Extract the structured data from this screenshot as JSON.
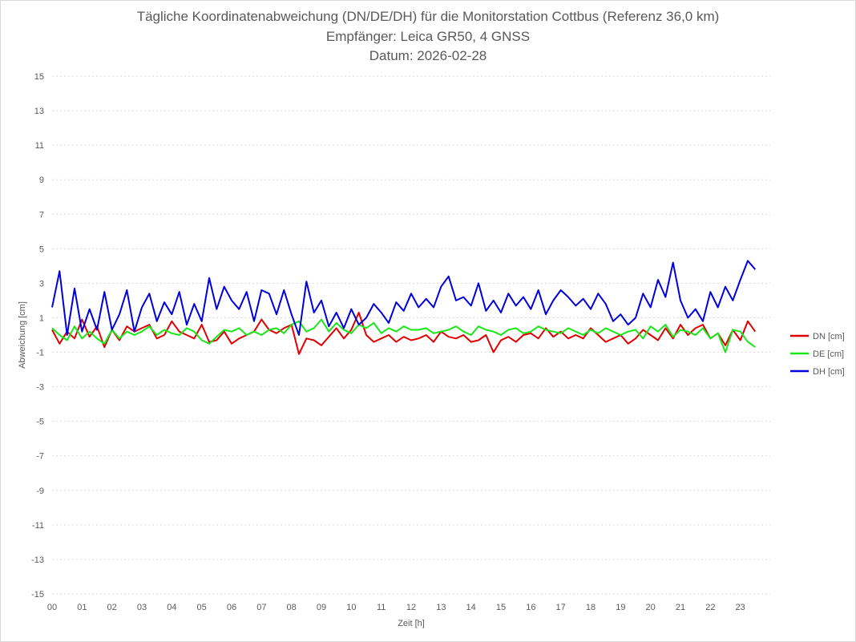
{
  "chart_data": {
    "type": "line",
    "title_lines": [
      "Tägliche Koordinatenabweichung (DN/DE/DH) für die Monitorstation Cottbus (Referenz 36,0 km)",
      "Empfänger: Leica GR50, 4 GNSS",
      "Datum: 2026-02-28"
    ],
    "xlabel": "Zeit [h]",
    "ylabel": "Abweichung [cm]",
    "xlim": [
      0,
      24
    ],
    "ylim": [
      -15,
      15
    ],
    "x_ticks": [
      "00",
      "01",
      "02",
      "03",
      "04",
      "05",
      "06",
      "07",
      "08",
      "09",
      "10",
      "11",
      "12",
      "13",
      "14",
      "15",
      "16",
      "17",
      "18",
      "19",
      "20",
      "21",
      "22",
      "23"
    ],
    "y_ticks": [
      15,
      13,
      11,
      9,
      7,
      5,
      3,
      1,
      -1,
      -3,
      -5,
      -7,
      -9,
      -11,
      -13,
      -15
    ],
    "legend_position": "right",
    "series": [
      {
        "name": "DN [cm]",
        "color": "#e00000",
        "x": [
          0.0,
          0.25,
          0.5,
          0.75,
          1.0,
          1.25,
          1.5,
          1.75,
          2.0,
          2.25,
          2.5,
          2.75,
          3.0,
          3.25,
          3.5,
          3.75,
          4.0,
          4.25,
          4.5,
          4.75,
          5.0,
          5.25,
          5.5,
          5.75,
          6.0,
          6.25,
          6.5,
          6.75,
          7.0,
          7.25,
          7.5,
          7.75,
          8.0,
          8.25,
          8.5,
          8.75,
          9.0,
          9.25,
          9.5,
          9.75,
          10.0,
          10.25,
          10.5,
          10.75,
          11.0,
          11.25,
          11.5,
          11.75,
          12.0,
          12.25,
          12.5,
          12.75,
          13.0,
          13.25,
          13.5,
          13.75,
          14.0,
          14.25,
          14.5,
          14.75,
          15.0,
          15.25,
          15.5,
          15.75,
          16.0,
          16.25,
          16.5,
          16.75,
          17.0,
          17.25,
          17.5,
          17.75,
          18.0,
          18.25,
          18.5,
          18.75,
          19.0,
          19.25,
          19.5,
          19.75,
          20.0,
          20.25,
          20.5,
          20.75,
          21.0,
          21.25,
          21.5,
          21.75,
          22.0,
          22.25,
          22.5,
          22.75,
          23.0,
          23.25,
          23.5
        ],
        "values": [
          0.3,
          -0.5,
          0.2,
          -0.2,
          0.9,
          -0.1,
          0.5,
          -0.7,
          0.3,
          -0.3,
          0.5,
          0.2,
          0.4,
          0.6,
          -0.2,
          0.0,
          0.8,
          0.2,
          0.0,
          -0.2,
          0.6,
          -0.4,
          -0.3,
          0.2,
          -0.5,
          -0.2,
          0.0,
          0.2,
          0.9,
          0.3,
          0.1,
          0.4,
          0.6,
          -1.1,
          -0.2,
          -0.3,
          -0.6,
          -0.1,
          0.4,
          -0.2,
          0.3,
          1.3,
          0.0,
          -0.4,
          -0.2,
          0.0,
          -0.4,
          -0.1,
          -0.3,
          -0.2,
          0.0,
          -0.4,
          0.2,
          -0.1,
          -0.2,
          0.0,
          -0.4,
          -0.3,
          0.0,
          -1.0,
          -0.3,
          -0.1,
          -0.4,
          0.0,
          0.1,
          -0.2,
          0.4,
          -0.1,
          0.2,
          -0.2,
          0.0,
          -0.2,
          0.4,
          0.0,
          -0.4,
          -0.2,
          0.0,
          -0.5,
          -0.2,
          0.3,
          0.0,
          -0.3,
          0.4,
          -0.2,
          0.6,
          0.0,
          0.4,
          0.6,
          -0.2,
          0.1,
          -0.6,
          0.3,
          -0.3,
          0.8,
          0.2
        ]
      },
      {
        "name": "DE [cm]",
        "color": "#19e619",
        "x": [
          0.0,
          0.25,
          0.5,
          0.75,
          1.0,
          1.25,
          1.5,
          1.75,
          2.0,
          2.25,
          2.5,
          2.75,
          3.0,
          3.25,
          3.5,
          3.75,
          4.0,
          4.25,
          4.5,
          4.75,
          5.0,
          5.25,
          5.5,
          5.75,
          6.0,
          6.25,
          6.5,
          6.75,
          7.0,
          7.25,
          7.5,
          7.75,
          8.0,
          8.25,
          8.5,
          8.75,
          9.0,
          9.25,
          9.5,
          9.75,
          10.0,
          10.25,
          10.5,
          10.75,
          11.0,
          11.25,
          11.5,
          11.75,
          12.0,
          12.25,
          12.5,
          12.75,
          13.0,
          13.25,
          13.5,
          13.75,
          14.0,
          14.25,
          14.5,
          14.75,
          15.0,
          15.25,
          15.5,
          15.75,
          16.0,
          16.25,
          16.5,
          16.75,
          17.0,
          17.25,
          17.5,
          17.75,
          18.0,
          18.25,
          18.5,
          18.75,
          19.0,
          19.25,
          19.5,
          19.75,
          20.0,
          20.25,
          20.5,
          20.75,
          21.0,
          21.25,
          21.5,
          21.75,
          22.0,
          22.25,
          22.5,
          22.75,
          23.0,
          23.25,
          23.5
        ],
        "values": [
          0.4,
          0.0,
          -0.3,
          0.5,
          -0.2,
          0.2,
          -0.2,
          -0.5,
          0.3,
          -0.2,
          0.2,
          0.0,
          0.2,
          0.5,
          0.0,
          0.3,
          0.1,
          0.0,
          0.4,
          0.2,
          -0.3,
          -0.5,
          -0.1,
          0.3,
          0.2,
          0.4,
          0.0,
          0.2,
          0.0,
          0.3,
          0.4,
          0.1,
          0.6,
          0.8,
          0.2,
          0.4,
          0.9,
          0.2,
          0.7,
          0.3,
          0.1,
          0.6,
          0.4,
          0.7,
          0.1,
          0.4,
          0.2,
          0.5,
          0.3,
          0.3,
          0.4,
          0.1,
          0.2,
          0.3,
          0.5,
          0.2,
          0.0,
          0.5,
          0.3,
          0.2,
          0.0,
          0.3,
          0.4,
          0.1,
          0.2,
          0.5,
          0.3,
          0.2,
          0.1,
          0.4,
          0.2,
          0.0,
          0.3,
          0.1,
          0.4,
          0.2,
          0.0,
          0.2,
          0.3,
          -0.2,
          0.5,
          0.2,
          0.6,
          -0.1,
          0.3,
          0.2,
          0.0,
          0.4,
          -0.2,
          0.1,
          -1.0,
          0.3,
          0.2,
          -0.4,
          -0.7
        ]
      },
      {
        "name": "DH [cm]",
        "color": "#0000dd",
        "x": [
          0.0,
          0.25,
          0.5,
          0.75,
          1.0,
          1.25,
          1.5,
          1.75,
          2.0,
          2.25,
          2.5,
          2.75,
          3.0,
          3.25,
          3.5,
          3.75,
          4.0,
          4.25,
          4.5,
          4.75,
          5.0,
          5.25,
          5.5,
          5.75,
          6.0,
          6.25,
          6.5,
          6.75,
          7.0,
          7.25,
          7.5,
          7.75,
          8.0,
          8.25,
          8.5,
          8.75,
          9.0,
          9.25,
          9.5,
          9.75,
          10.0,
          10.25,
          10.5,
          10.75,
          11.0,
          11.25,
          11.5,
          11.75,
          12.0,
          12.25,
          12.5,
          12.75,
          13.0,
          13.25,
          13.5,
          13.75,
          14.0,
          14.25,
          14.5,
          14.75,
          15.0,
          15.25,
          15.5,
          15.75,
          16.0,
          16.25,
          16.5,
          16.75,
          17.0,
          17.25,
          17.5,
          17.75,
          18.0,
          18.25,
          18.5,
          18.75,
          19.0,
          19.25,
          19.5,
          19.75,
          20.0,
          20.25,
          20.5,
          20.75,
          21.0,
          21.25,
          21.5,
          21.75,
          22.0,
          22.25,
          22.5,
          22.75,
          23.0,
          23.25,
          23.5
        ],
        "values": [
          1.6,
          3.7,
          0.0,
          2.7,
          0.2,
          1.5,
          0.3,
          2.5,
          0.3,
          1.2,
          2.6,
          0.2,
          1.6,
          2.4,
          0.8,
          1.9,
          1.2,
          2.5,
          0.6,
          1.8,
          0.8,
          3.3,
          1.5,
          2.8,
          2.0,
          1.5,
          2.5,
          0.8,
          2.6,
          2.4,
          1.2,
          2.6,
          1.2,
          0.0,
          3.1,
          1.3,
          2.0,
          0.5,
          1.3,
          0.4,
          1.5,
          0.6,
          1.0,
          1.8,
          1.3,
          0.7,
          1.9,
          1.4,
          2.4,
          1.6,
          2.1,
          1.6,
          2.8,
          3.4,
          2.0,
          2.2,
          1.7,
          3.0,
          1.4,
          2.0,
          1.3,
          2.4,
          1.7,
          2.2,
          1.5,
          2.6,
          1.2,
          2.0,
          2.6,
          2.2,
          1.7,
          2.1,
          1.5,
          2.4,
          1.8,
          0.8,
          1.2,
          0.6,
          1.0,
          2.4,
          1.6,
          3.2,
          2.2,
          4.2,
          2.0,
          1.0,
          1.5,
          0.8,
          2.5,
          1.6,
          2.8,
          2.0,
          3.2,
          4.3,
          3.8
        ]
      }
    ]
  }
}
